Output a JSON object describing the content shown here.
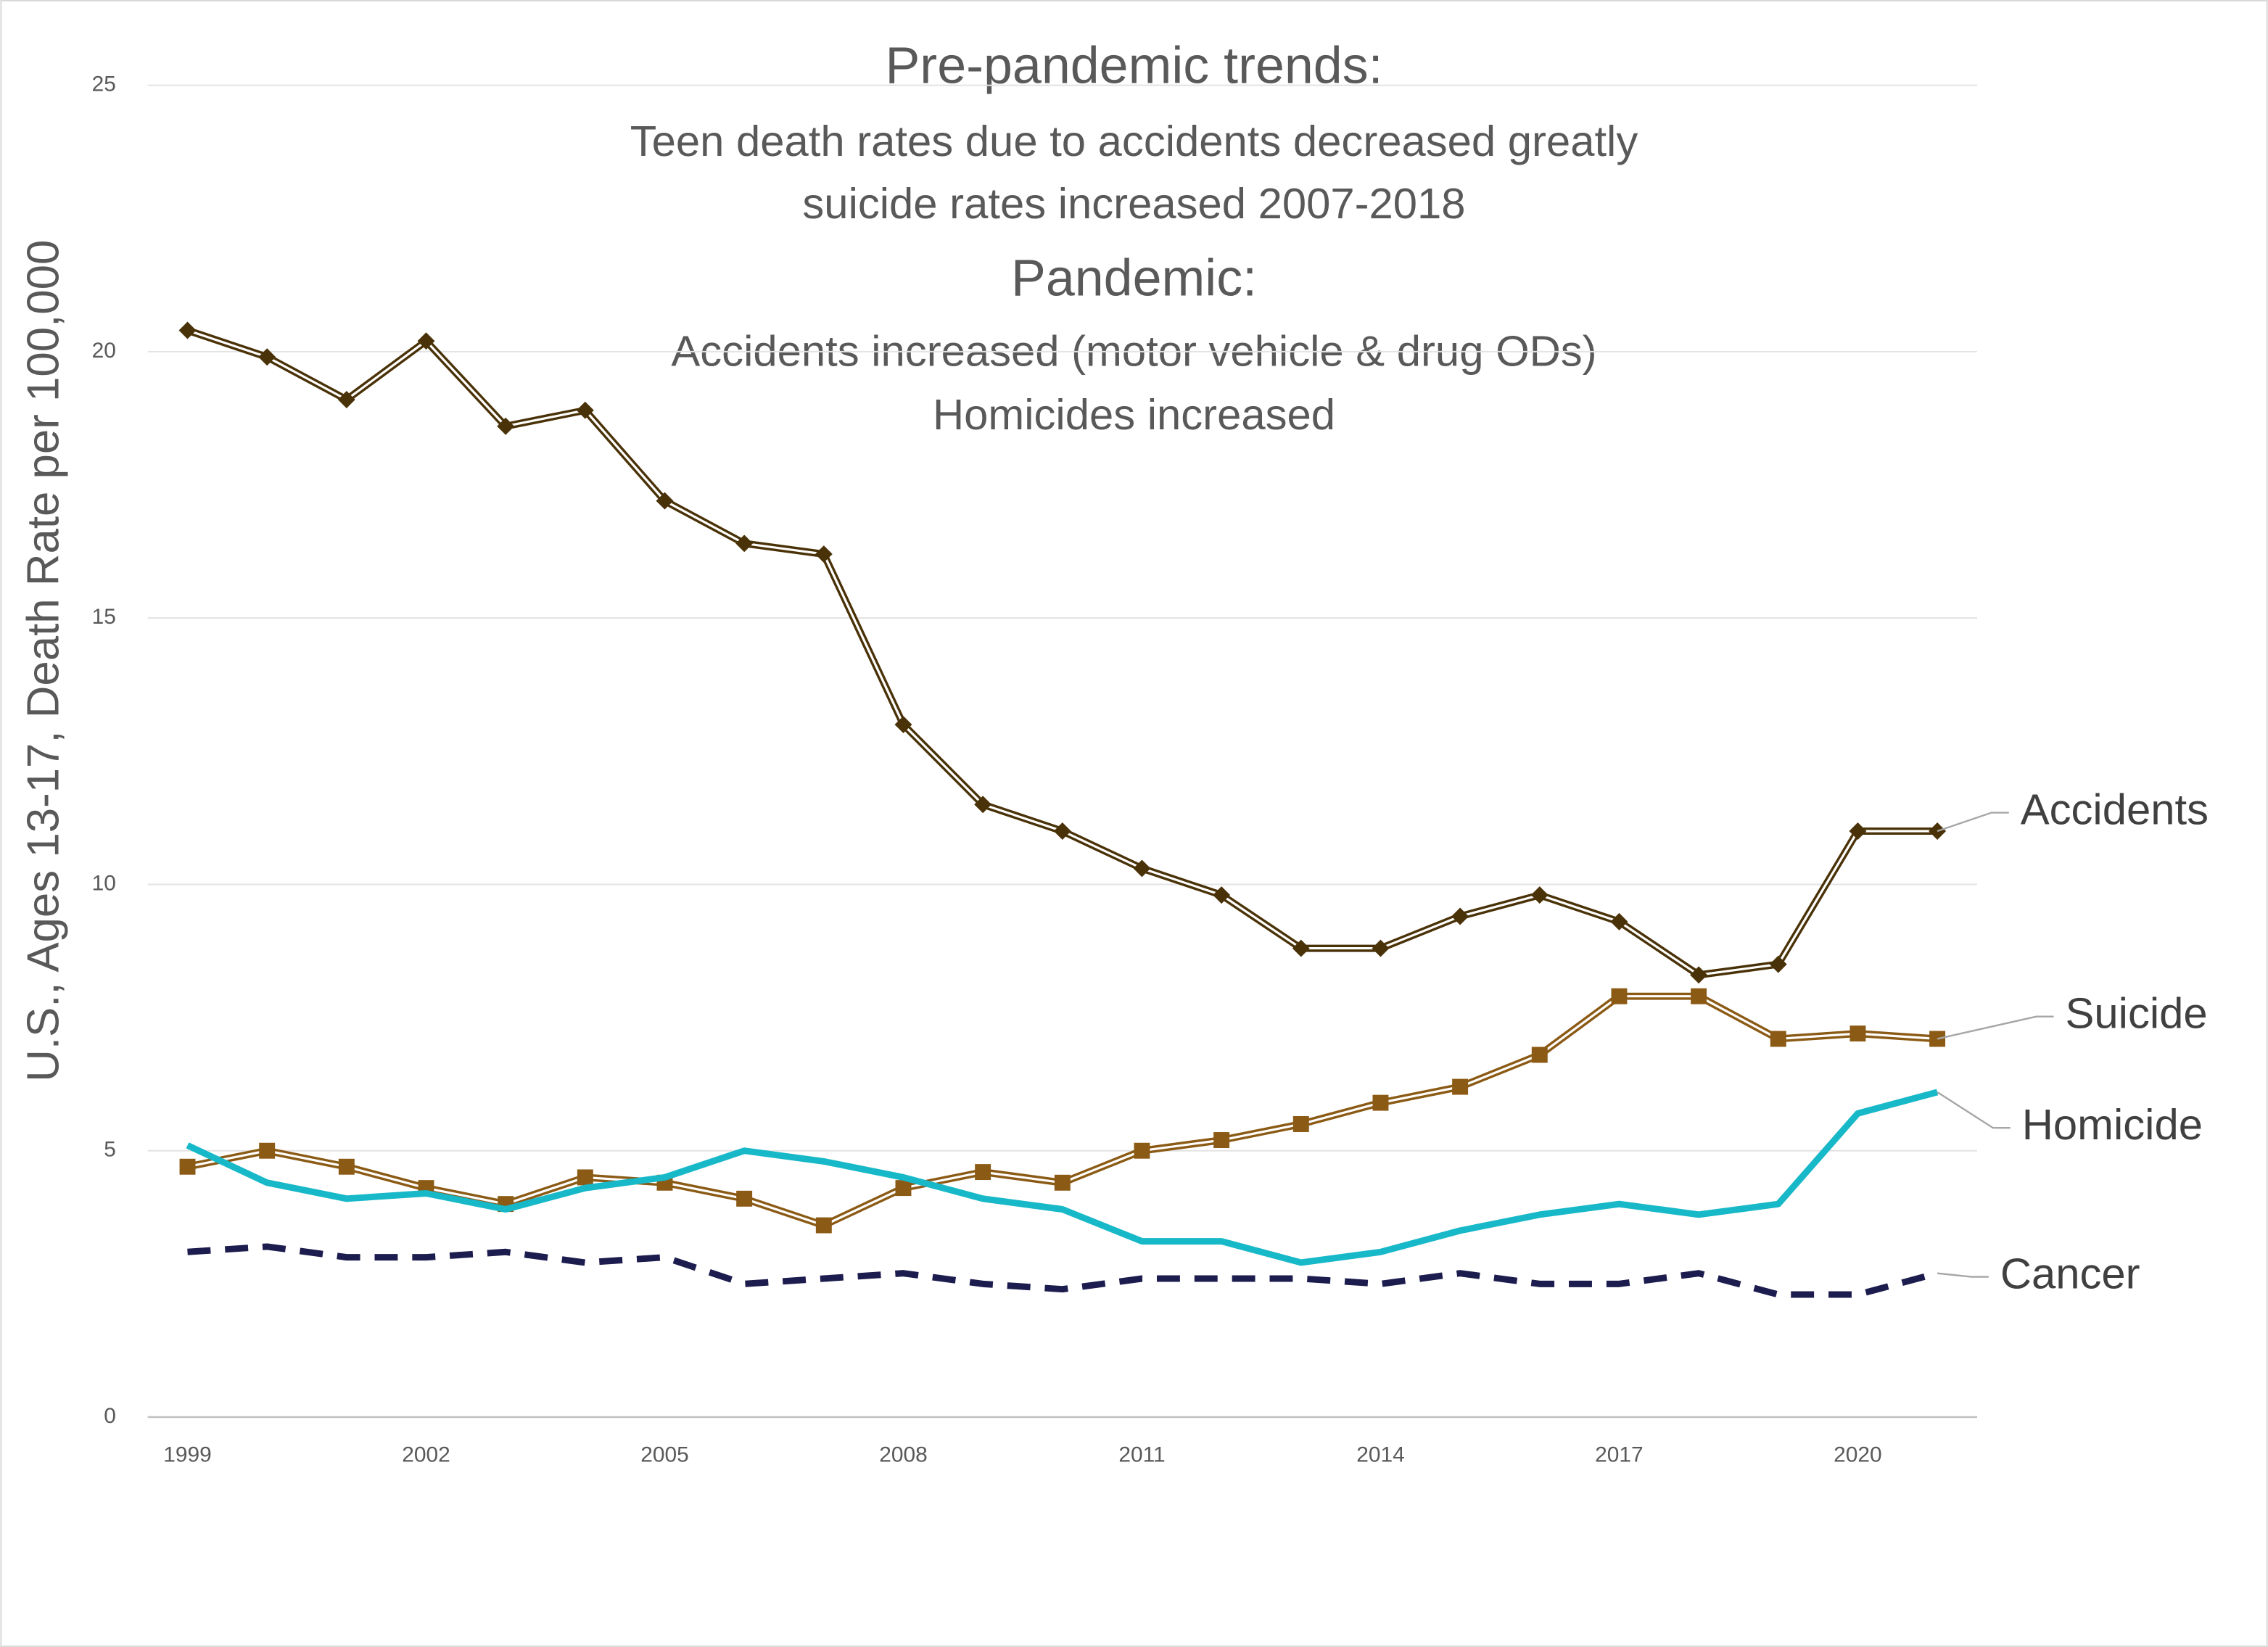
{
  "chart_data": {
    "type": "line",
    "title_lines": [
      "Pre-pandemic trends:",
      "Teen death rates due to accidents decreased greatly",
      "suicide rates increased 2007-2018",
      "Pandemic:",
      "Accidents increased (motor vehicle & drug ODs)",
      "Homicides increased"
    ],
    "y_label": "U.S., Ages 13-17, Death Rate per 100,000",
    "categories": [
      "1999",
      null,
      null,
      "2002",
      null,
      null,
      "2005",
      null,
      null,
      "2008",
      null,
      null,
      "2011",
      null,
      null,
      "2014",
      null,
      null,
      "2017",
      null,
      null,
      "2020",
      null
    ],
    "ylim": [
      0,
      25
    ],
    "yticks": [
      0,
      5,
      10,
      15,
      20,
      25
    ],
    "grid": true,
    "series": [
      {
        "name": "Accidents",
        "color": "#4a3208",
        "style": "double",
        "marker": "diamond",
        "values": [
          20.4,
          19.9,
          19.1,
          20.2,
          18.6,
          18.9,
          17.2,
          16.4,
          16.2,
          13.0,
          11.5,
          11.0,
          10.3,
          9.8,
          8.8,
          8.8,
          9.4,
          9.8,
          9.3,
          8.3,
          8.5,
          11.0,
          11.0
        ]
      },
      {
        "name": "Suicide",
        "color": "#8b5a14",
        "style": "double",
        "marker": "square",
        "values": [
          4.7,
          5.0,
          4.7,
          4.3,
          4.0,
          4.5,
          4.4,
          4.1,
          3.6,
          4.3,
          4.6,
          4.4,
          5.0,
          5.2,
          5.5,
          5.9,
          6.2,
          6.8,
          7.9,
          7.9,
          7.1,
          7.2,
          7.1
        ]
      },
      {
        "name": "Homicide",
        "color": "#17b8c8",
        "style": "solid",
        "marker": "none",
        "values": [
          5.1,
          4.4,
          4.1,
          4.2,
          3.9,
          4.3,
          4.5,
          5.0,
          4.8,
          4.5,
          4.1,
          3.9,
          3.3,
          3.3,
          2.9,
          3.1,
          3.5,
          3.8,
          4.0,
          3.8,
          4.0,
          5.7,
          6.1
        ]
      },
      {
        "name": "Cancer",
        "color": "#1c1c4e",
        "style": "dashed",
        "marker": "none",
        "values": [
          3.1,
          3.2,
          3.0,
          3.0,
          3.1,
          2.9,
          3.0,
          2.5,
          2.6,
          2.7,
          2.5,
          2.4,
          2.6,
          2.6,
          2.6,
          2.5,
          2.7,
          2.5,
          2.5,
          2.7,
          2.3,
          2.3,
          2.7
        ]
      }
    ]
  }
}
